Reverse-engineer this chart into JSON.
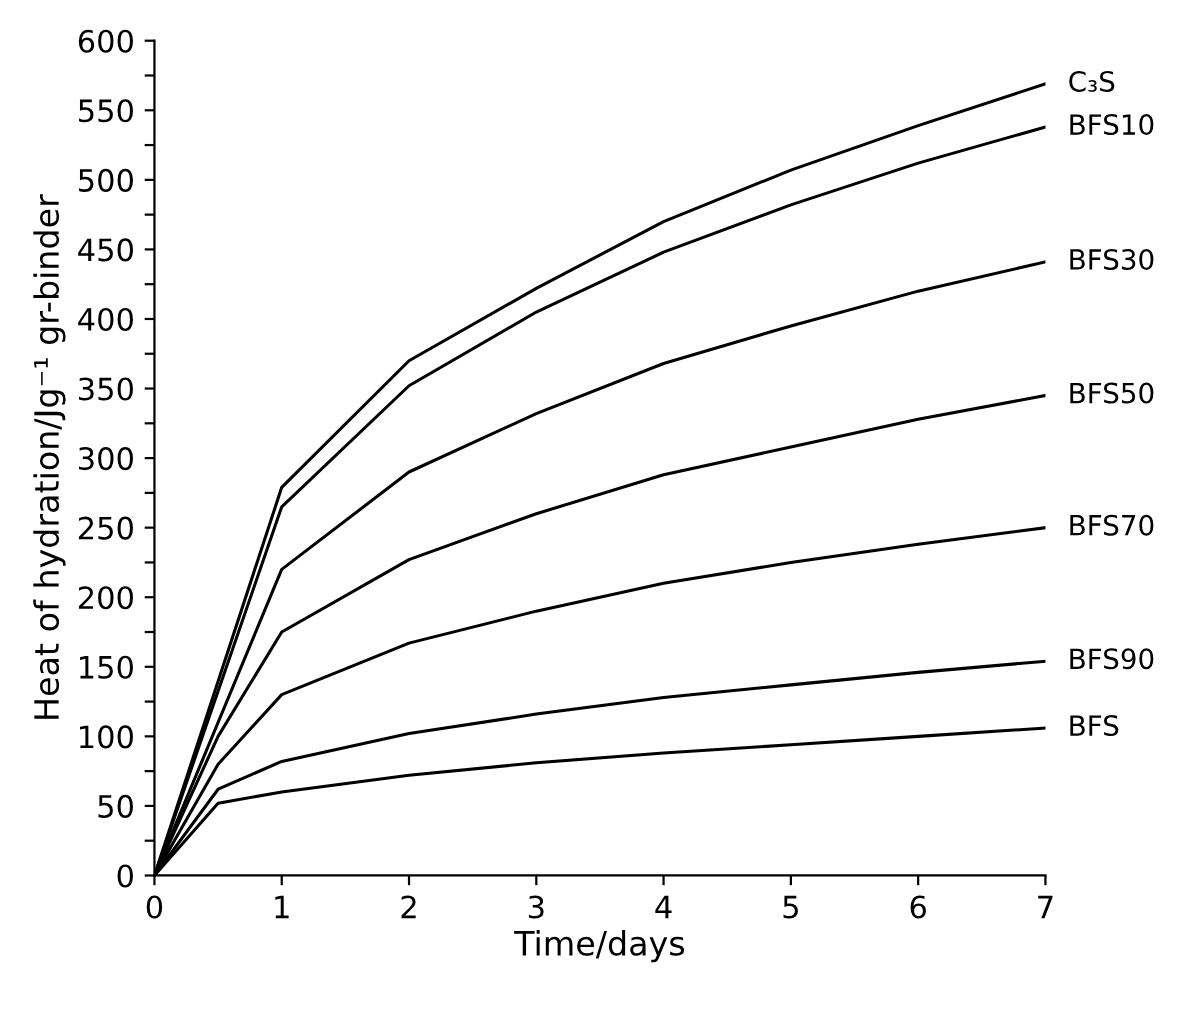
{
  "chart_data": {
    "type": "line",
    "xlabel": "Time/days",
    "ylabel": "Heat of hydration/Jg⁻¹ gr-binder",
    "xlim": [
      0,
      7
    ],
    "xticks": [
      0,
      1,
      2,
      3,
      4,
      5,
      6,
      7
    ],
    "ylim": [
      0,
      600
    ],
    "yticks": [
      0,
      {
        "value": 25,
        "label": null
      },
      50,
      {
        "value": 75,
        "label": null
      },
      100,
      {
        "value": 125,
        "label": null
      },
      150,
      {
        "value": 175,
        "label": null
      },
      200,
      {
        "value": 225,
        "label": null
      },
      250,
      {
        "value": 275,
        "label": null
      },
      300,
      {
        "value": 325,
        "label": null
      },
      350,
      {
        "value": 375,
        "label": null
      },
      400,
      {
        "value": 425,
        "label": null
      },
      450,
      {
        "value": 475,
        "label": null
      },
      500,
      {
        "value": 525,
        "label": null
      },
      550,
      {
        "value": 575,
        "label": null
      },
      600
    ],
    "grid": false,
    "legend": false,
    "marker": "none",
    "line_style": "solid",
    "series": [
      {
        "name": "C₃S",
        "color": "#000000",
        "x": [
          0,
          1,
          2,
          3,
          4,
          5,
          6,
          7
        ],
        "values": [
          0,
          279,
          370,
          422,
          470,
          507,
          539,
          569
        ]
      },
      {
        "name": "BFS10",
        "color": "#000000",
        "x": [
          0,
          1,
          2,
          3,
          4,
          5,
          6,
          7
        ],
        "values": [
          0,
          265,
          352,
          405,
          448,
          482,
          512,
          538
        ]
      },
      {
        "name": "BFS30",
        "color": "#000000",
        "x": [
          0,
          1,
          2,
          3,
          4,
          5,
          6,
          7
        ],
        "values": [
          0,
          220,
          290,
          332,
          368,
          395,
          420,
          441
        ]
      },
      {
        "name": "BFS50",
        "color": "#000000",
        "x": [
          0,
          0.5,
          1,
          2,
          3,
          4,
          5,
          6,
          7
        ],
        "values": [
          0,
          100,
          175,
          227,
          260,
          288,
          308,
          328,
          345
        ]
      },
      {
        "name": "BFS70",
        "color": "#000000",
        "x": [
          0,
          0.5,
          1,
          2,
          3,
          4,
          5,
          6,
          7
        ],
        "values": [
          0,
          80,
          130,
          167,
          190,
          210,
          225,
          238,
          250
        ]
      },
      {
        "name": "BFS90",
        "color": "#000000",
        "x": [
          0,
          0.5,
          1,
          2,
          3,
          4,
          5,
          6,
          7
        ],
        "values": [
          0,
          62,
          82,
          102,
          116,
          128,
          137,
          146,
          154
        ]
      },
      {
        "name": "BFS",
        "color": "#000000",
        "x": [
          0,
          0.5,
          1,
          2,
          3,
          4,
          5,
          6,
          7
        ],
        "values": [
          0,
          52,
          60,
          72,
          81,
          88,
          94,
          100,
          106
        ]
      }
    ]
  }
}
